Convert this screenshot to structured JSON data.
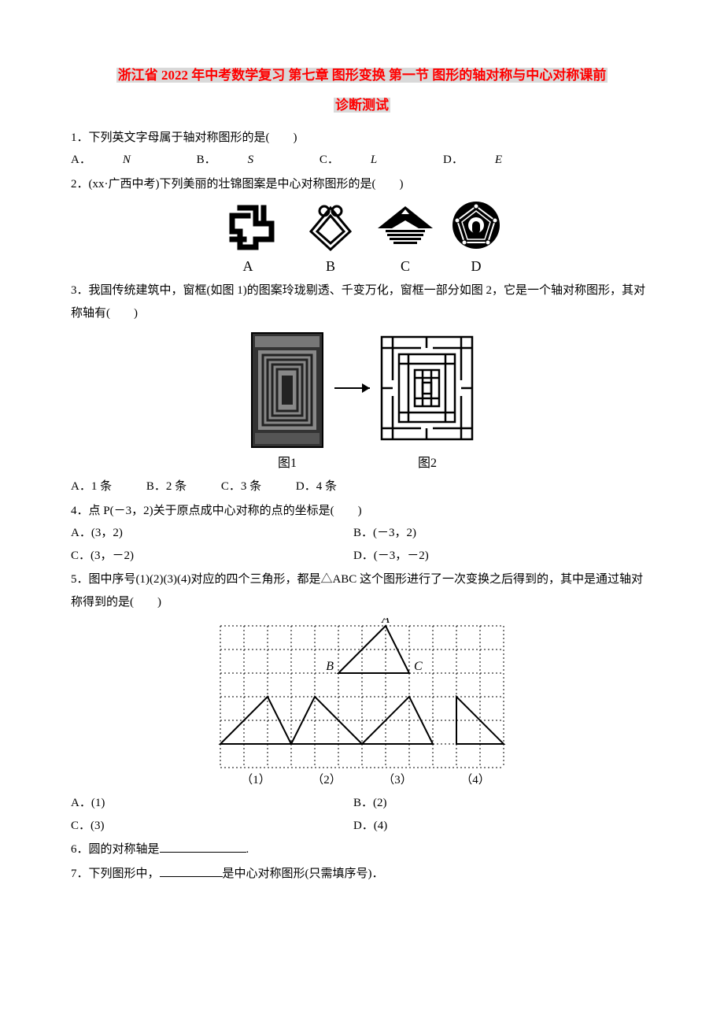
{
  "title_line1": "浙江省 2022 年中考数学复习 第七章 图形变换 第一节 图形的轴对称与中心对称课前",
  "title_line2": "诊断测试",
  "q1": {
    "stem": "1．下列英文字母属于轴对称图形的是(　　)",
    "A": "A．",
    "Av": "N",
    "B": "B．",
    "Bv": "S",
    "C": "C．",
    "Cv": "L",
    "D": "D．",
    "Dv": "E"
  },
  "q2": {
    "stem": "2．(xx·广西中考)下列美丽的壮锦图案是中心对称图形的是(　　)",
    "labels": {
      "A": "A",
      "B": "B",
      "C": "C",
      "D": "D"
    },
    "icons": {
      "A": {
        "bg": "#ffffff",
        "fg": "#000000"
      },
      "B": {
        "bg": "#ffffff",
        "fg": "#000000"
      },
      "C": {
        "bg": "#ffffff",
        "fg": "#000000"
      },
      "D": {
        "bg": "#000000",
        "fg": "#ffffff"
      }
    }
  },
  "q3": {
    "stem": "3．我国传统建筑中，窗框(如图 1)的图案玲珑剔透、千变万化，窗框一部分如图 2，它是一个轴对称图形，其对称轴有(　　)",
    "fig1_label": "图1",
    "fig2_label": "图2",
    "A": "A．1 条",
    "B": "B．2 条",
    "C": "C．3 条",
    "D": "D．4 条",
    "fig": {
      "border": "#000000",
      "bg": "#ffffff",
      "dark": "#2b2b2b"
    }
  },
  "q4": {
    "stem": "4．点 P(－3，2)关于原点成中心对称的点的坐标是(　　)",
    "A": "A．(3，2)",
    "B": "B．(－3，2)",
    "C": "C．(3，－2)",
    "D": "D．(－3，－2)"
  },
  "q5": {
    "stem": "5．图中序号(1)(2)(3)(4)对应的四个三角形，都是△ABC 这个图形进行了一次变换之后得到的，其中是通过轴对称得到的是(　　)",
    "A": "A．(1)",
    "B": "B．(2)",
    "C": "C．(3)",
    "D": "D．(4)",
    "labels": {
      "A": "A",
      "B": "B",
      "C": "C",
      "n1": "（1）",
      "n2": "（2）",
      "n3": "（3）",
      "n4": "（4）"
    },
    "grid": {
      "cols": 12,
      "rows": 6,
      "cell": 30,
      "line_color": "#000000",
      "dash": "2,3",
      "triangles": {
        "ABC": [
          [
            7,
            0
          ],
          [
            5,
            2
          ],
          [
            8,
            2
          ]
        ],
        "t1": [
          [
            0,
            5
          ],
          [
            2,
            3
          ],
          [
            3,
            5
          ]
        ],
        "t2": [
          [
            3,
            5
          ],
          [
            4,
            3
          ],
          [
            6,
            5
          ]
        ],
        "t3": [
          [
            6,
            5
          ],
          [
            8,
            3
          ],
          [
            9,
            5
          ]
        ],
        "t4": [
          [
            10,
            5
          ],
          [
            10,
            3
          ],
          [
            12,
            5
          ]
        ]
      },
      "label_pos": {
        "A": [
          7,
          0
        ],
        "B": [
          5,
          2
        ],
        "C": [
          8,
          2
        ]
      }
    }
  },
  "q6": {
    "stem_a": "6．圆的对称轴是",
    "stem_b": "."
  },
  "q7": {
    "stem_a": "7．下列图形中，",
    "stem_b": "是中心对称图形(只需填序号)．"
  }
}
